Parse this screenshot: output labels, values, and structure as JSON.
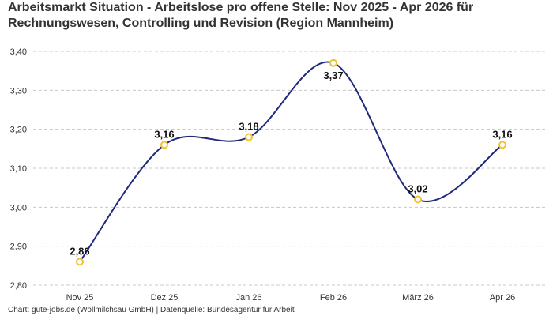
{
  "chart_data": {
    "type": "line",
    "title": "Arbeitsmarkt Situation - Arbeitslose pro offene Stelle: Nov 2025 - Apr 2026 für Rechnungswesen, Controlling und Revision (Region Mannheim)",
    "categories": [
      "Nov 25",
      "Dez 25",
      "Jan 26",
      "Feb 26",
      "März 26",
      "Apr 26"
    ],
    "series": [
      {
        "values": [
          2.86,
          3.16,
          3.18,
          3.37,
          3.02,
          3.16
        ],
        "labels": [
          "2,86",
          "3,16",
          "3,18",
          "3,37",
          "3,02",
          "3,16"
        ]
      }
    ],
    "ylim": [
      2.8,
      3.4
    ],
    "yticks": [
      2.8,
      2.9,
      3.0,
      3.1,
      3.2,
      3.3,
      3.4
    ],
    "ytick_labels": [
      "2,80",
      "2,90",
      "3,00",
      "3,10",
      "3,20",
      "3,30",
      "3,40"
    ],
    "grid": true,
    "line_color": "#1f2a7a",
    "marker_color": "#f2c230",
    "source": "Chart: gute-jobs.de (Wollmilchsau GmbH) | Datenquelle: Bundesagentur für Arbeit"
  }
}
